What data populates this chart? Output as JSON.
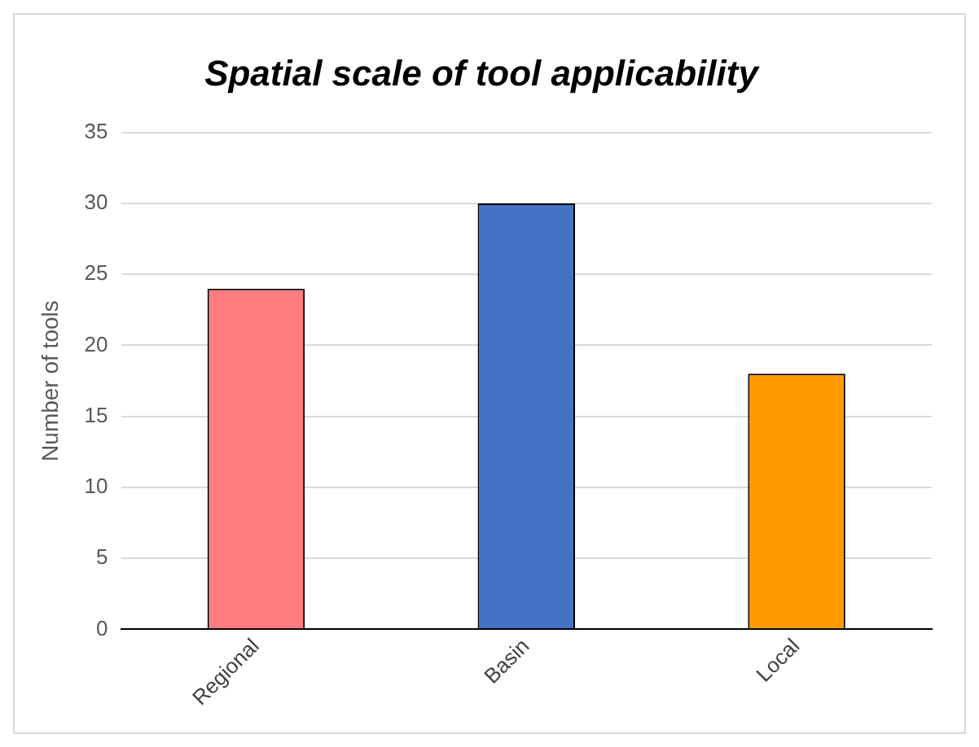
{
  "chart_data": {
    "type": "bar",
    "title": "Spatial scale of tool applicability",
    "ylabel": "Number of tools",
    "categories": [
      "Regional",
      "Basin",
      "Local"
    ],
    "values": [
      24,
      30,
      18
    ],
    "colors": [
      "#ff7c80",
      "#4472c4",
      "#ff9900"
    ],
    "ylim": [
      0,
      35
    ],
    "yticks": [
      0,
      5,
      10,
      15,
      20,
      25,
      30,
      35
    ],
    "grid": "y",
    "legend": false
  }
}
